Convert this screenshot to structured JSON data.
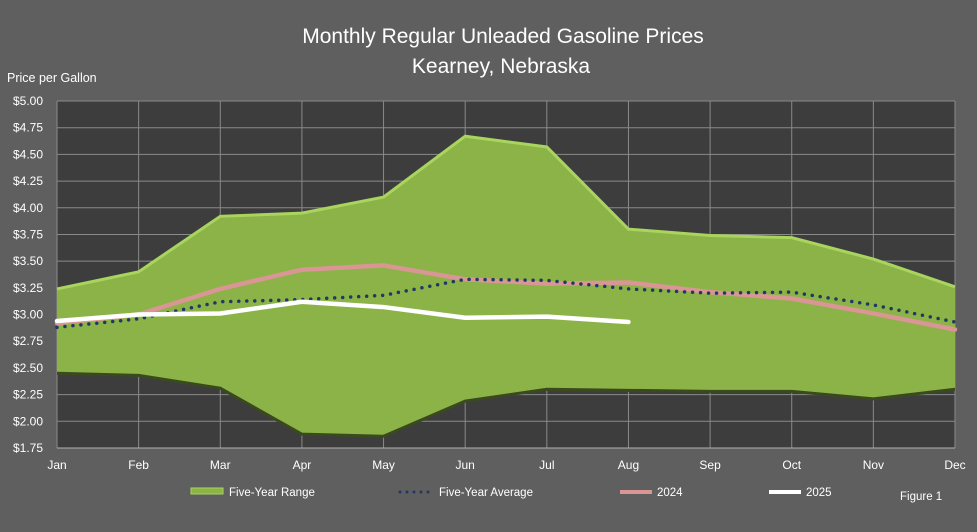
{
  "chart_data": {
    "type": "area",
    "title": "Monthly Regular Unleaded Gasoline Prices",
    "subtitle": "Kearney, Nebraska",
    "ylabel": "Price per Gallon",
    "xlabel": "",
    "categories": [
      "Jan",
      "Feb",
      "Mar",
      "Apr",
      "May",
      "Jun",
      "Jul",
      "Aug",
      "Sep",
      "Oct",
      "Nov",
      "Dec"
    ],
    "ylim": [
      1.75,
      5.0
    ],
    "ytick_step": 0.25,
    "ytick_labels": [
      "$1.75",
      "$2.00",
      "$2.25",
      "$2.50",
      "$2.75",
      "$3.00",
      "$3.25",
      "$3.50",
      "$3.75",
      "$4.00",
      "$4.25",
      "$4.50",
      "$4.75",
      "$5.00"
    ],
    "grid": true,
    "legend_position": "bottom",
    "range": {
      "name": "Five-Year Range",
      "high": [
        3.24,
        3.4,
        3.92,
        3.95,
        4.1,
        4.67,
        4.57,
        3.8,
        3.74,
        3.72,
        3.52,
        3.26
      ],
      "low": [
        2.45,
        2.43,
        2.31,
        1.88,
        1.86,
        2.19,
        2.3,
        2.29,
        2.28,
        2.28,
        2.21,
        2.3
      ],
      "color": "#8cb347"
    },
    "series": [
      {
        "name": "Five-Year Average",
        "style": "dotted",
        "color": "#1f3864",
        "values": [
          2.88,
          2.96,
          3.12,
          3.14,
          3.18,
          3.33,
          3.32,
          3.24,
          3.2,
          3.21,
          3.09,
          2.93
        ]
      },
      {
        "name": "2024",
        "style": "solid",
        "color": "#d99694",
        "values": [
          2.92,
          3.0,
          3.24,
          3.42,
          3.46,
          3.33,
          3.29,
          3.3,
          3.21,
          3.15,
          3.01,
          2.86
        ]
      },
      {
        "name": "2025",
        "style": "solid",
        "color": "#ffffff",
        "values": [
          2.94,
          3.0,
          3.01,
          3.12,
          3.07,
          2.97,
          2.98,
          2.93,
          null,
          null,
          null,
          null
        ]
      }
    ],
    "annotation": "Figure 1"
  }
}
